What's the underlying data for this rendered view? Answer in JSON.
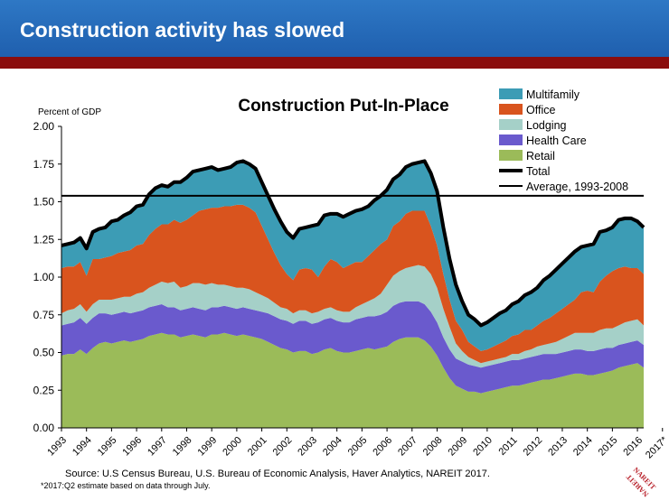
{
  "header": {
    "title": "Construction activity has slowed"
  },
  "source": "Source: U.S Census Bureau, U.S. Bureau of Economic Analysis, Haver Analytics, NAREIT 2017.",
  "footnote": "*2017:Q2 estimate based on data through July.",
  "logo_text": "NAREIT",
  "chart_data": {
    "type": "area",
    "title": "Construction Put-In-Place",
    "ylabel": "Percent of GDP",
    "xlabel": "",
    "ylim": [
      0,
      2
    ],
    "yticks": [
      "0.00",
      "0.25",
      "0.50",
      "0.75",
      "1.00",
      "1.25",
      "1.50",
      "1.75",
      "2.00"
    ],
    "xticks": [
      "1993",
      "1994",
      "1995",
      "1996",
      "1997",
      "1998",
      "1999",
      "2000",
      "2001",
      "2002",
      "2003",
      "2004",
      "2005",
      "2006",
      "2007",
      "2008",
      "2009",
      "2010",
      "2011",
      "2012",
      "2013",
      "2014",
      "2015",
      "2016",
      "2017*"
    ],
    "stacked": true,
    "grid": false,
    "legend_position": "top-right",
    "x_start": "1993:Q1",
    "x_frequency": "quarterly",
    "series": [
      {
        "name": "Retail",
        "color": "#9bbb59",
        "values": [
          0.48,
          0.49,
          0.49,
          0.52,
          0.49,
          0.53,
          0.56,
          0.57,
          0.56,
          0.57,
          0.58,
          0.57,
          0.58,
          0.59,
          0.61,
          0.62,
          0.63,
          0.62,
          0.62,
          0.6,
          0.61,
          0.62,
          0.61,
          0.6,
          0.62,
          0.62,
          0.63,
          0.62,
          0.61,
          0.62,
          0.61,
          0.6,
          0.59,
          0.57,
          0.55,
          0.53,
          0.52,
          0.5,
          0.51,
          0.51,
          0.49,
          0.5,
          0.52,
          0.53,
          0.51,
          0.5,
          0.5,
          0.51,
          0.52,
          0.53,
          0.52,
          0.53,
          0.54,
          0.57,
          0.59,
          0.6,
          0.6,
          0.6,
          0.58,
          0.54,
          0.48,
          0.4,
          0.33,
          0.28,
          0.26,
          0.24,
          0.24,
          0.23,
          0.24,
          0.25,
          0.26,
          0.27,
          0.28,
          0.28,
          0.29,
          0.3,
          0.31,
          0.32,
          0.32,
          0.33,
          0.34,
          0.35,
          0.36,
          0.36,
          0.35,
          0.35,
          0.36,
          0.37,
          0.38,
          0.4,
          0.41,
          0.42,
          0.43,
          0.4
        ]
      },
      {
        "name": "Health Care",
        "color": "#6a5acd",
        "values": [
          0.2,
          0.2,
          0.21,
          0.21,
          0.2,
          0.2,
          0.2,
          0.19,
          0.19,
          0.19,
          0.19,
          0.19,
          0.19,
          0.19,
          0.19,
          0.19,
          0.19,
          0.18,
          0.18,
          0.18,
          0.18,
          0.18,
          0.18,
          0.18,
          0.18,
          0.18,
          0.18,
          0.18,
          0.18,
          0.18,
          0.18,
          0.18,
          0.18,
          0.19,
          0.19,
          0.19,
          0.19,
          0.19,
          0.2,
          0.2,
          0.2,
          0.2,
          0.2,
          0.2,
          0.2,
          0.2,
          0.2,
          0.21,
          0.21,
          0.21,
          0.22,
          0.22,
          0.23,
          0.24,
          0.24,
          0.24,
          0.24,
          0.24,
          0.24,
          0.23,
          0.22,
          0.2,
          0.19,
          0.18,
          0.18,
          0.18,
          0.17,
          0.17,
          0.17,
          0.17,
          0.17,
          0.17,
          0.17,
          0.17,
          0.17,
          0.17,
          0.17,
          0.17,
          0.17,
          0.16,
          0.16,
          0.16,
          0.16,
          0.16,
          0.16,
          0.16,
          0.16,
          0.16,
          0.15,
          0.15,
          0.15,
          0.15,
          0.15,
          0.15
        ]
      },
      {
        "name": "Lodging",
        "color": "#a5d0c8",
        "values": [
          0.08,
          0.09,
          0.09,
          0.09,
          0.08,
          0.09,
          0.09,
          0.09,
          0.1,
          0.1,
          0.1,
          0.11,
          0.12,
          0.12,
          0.13,
          0.14,
          0.15,
          0.16,
          0.17,
          0.15,
          0.15,
          0.16,
          0.17,
          0.17,
          0.16,
          0.15,
          0.14,
          0.14,
          0.14,
          0.13,
          0.13,
          0.12,
          0.11,
          0.1,
          0.09,
          0.08,
          0.08,
          0.07,
          0.07,
          0.07,
          0.07,
          0.07,
          0.07,
          0.07,
          0.07,
          0.07,
          0.07,
          0.08,
          0.09,
          0.1,
          0.12,
          0.14,
          0.18,
          0.2,
          0.21,
          0.22,
          0.23,
          0.24,
          0.25,
          0.25,
          0.23,
          0.19,
          0.15,
          0.1,
          0.07,
          0.05,
          0.04,
          0.03,
          0.03,
          0.03,
          0.03,
          0.03,
          0.04,
          0.04,
          0.05,
          0.05,
          0.06,
          0.06,
          0.07,
          0.08,
          0.09,
          0.1,
          0.11,
          0.11,
          0.12,
          0.12,
          0.13,
          0.13,
          0.13,
          0.13,
          0.14,
          0.14,
          0.14,
          0.13
        ]
      },
      {
        "name": "Office",
        "color": "#d9541e",
        "values": [
          0.3,
          0.29,
          0.28,
          0.28,
          0.24,
          0.3,
          0.27,
          0.28,
          0.29,
          0.3,
          0.3,
          0.31,
          0.32,
          0.32,
          0.35,
          0.37,
          0.38,
          0.39,
          0.41,
          0.43,
          0.44,
          0.45,
          0.48,
          0.5,
          0.5,
          0.51,
          0.52,
          0.53,
          0.55,
          0.55,
          0.54,
          0.53,
          0.46,
          0.39,
          0.33,
          0.28,
          0.23,
          0.22,
          0.27,
          0.28,
          0.29,
          0.23,
          0.28,
          0.32,
          0.32,
          0.29,
          0.31,
          0.3,
          0.28,
          0.3,
          0.32,
          0.33,
          0.3,
          0.33,
          0.33,
          0.36,
          0.37,
          0.36,
          0.37,
          0.32,
          0.28,
          0.23,
          0.18,
          0.15,
          0.14,
          0.1,
          0.09,
          0.08,
          0.08,
          0.09,
          0.1,
          0.11,
          0.12,
          0.13,
          0.14,
          0.13,
          0.14,
          0.16,
          0.17,
          0.19,
          0.2,
          0.21,
          0.22,
          0.27,
          0.28,
          0.27,
          0.32,
          0.35,
          0.38,
          0.38,
          0.37,
          0.35,
          0.34,
          0.34
        ]
      },
      {
        "name": "Multifamily",
        "color": "#3c9cb5",
        "values": [
          0.15,
          0.15,
          0.16,
          0.16,
          0.18,
          0.18,
          0.2,
          0.2,
          0.23,
          0.22,
          0.24,
          0.25,
          0.26,
          0.26,
          0.27,
          0.27,
          0.26,
          0.25,
          0.25,
          0.27,
          0.28,
          0.29,
          0.27,
          0.27,
          0.27,
          0.25,
          0.25,
          0.26,
          0.28,
          0.29,
          0.29,
          0.29,
          0.29,
          0.29,
          0.29,
          0.29,
          0.28,
          0.28,
          0.27,
          0.27,
          0.29,
          0.35,
          0.34,
          0.3,
          0.32,
          0.34,
          0.34,
          0.34,
          0.35,
          0.33,
          0.33,
          0.32,
          0.33,
          0.31,
          0.31,
          0.31,
          0.31,
          0.32,
          0.33,
          0.35,
          0.36,
          0.31,
          0.27,
          0.24,
          0.19,
          0.18,
          0.18,
          0.17,
          0.18,
          0.19,
          0.2,
          0.2,
          0.21,
          0.22,
          0.23,
          0.25,
          0.25,
          0.27,
          0.28,
          0.29,
          0.3,
          0.31,
          0.32,
          0.3,
          0.3,
          0.32,
          0.33,
          0.3,
          0.29,
          0.32,
          0.32,
          0.33,
          0.31,
          0.31
        ]
      }
    ],
    "lines": [
      {
        "name": "Total",
        "color": "#000000",
        "kind": "sum-of-series"
      },
      {
        "name": "Average, 1993-2008",
        "color": "#000000",
        "value": 1.54
      }
    ]
  }
}
